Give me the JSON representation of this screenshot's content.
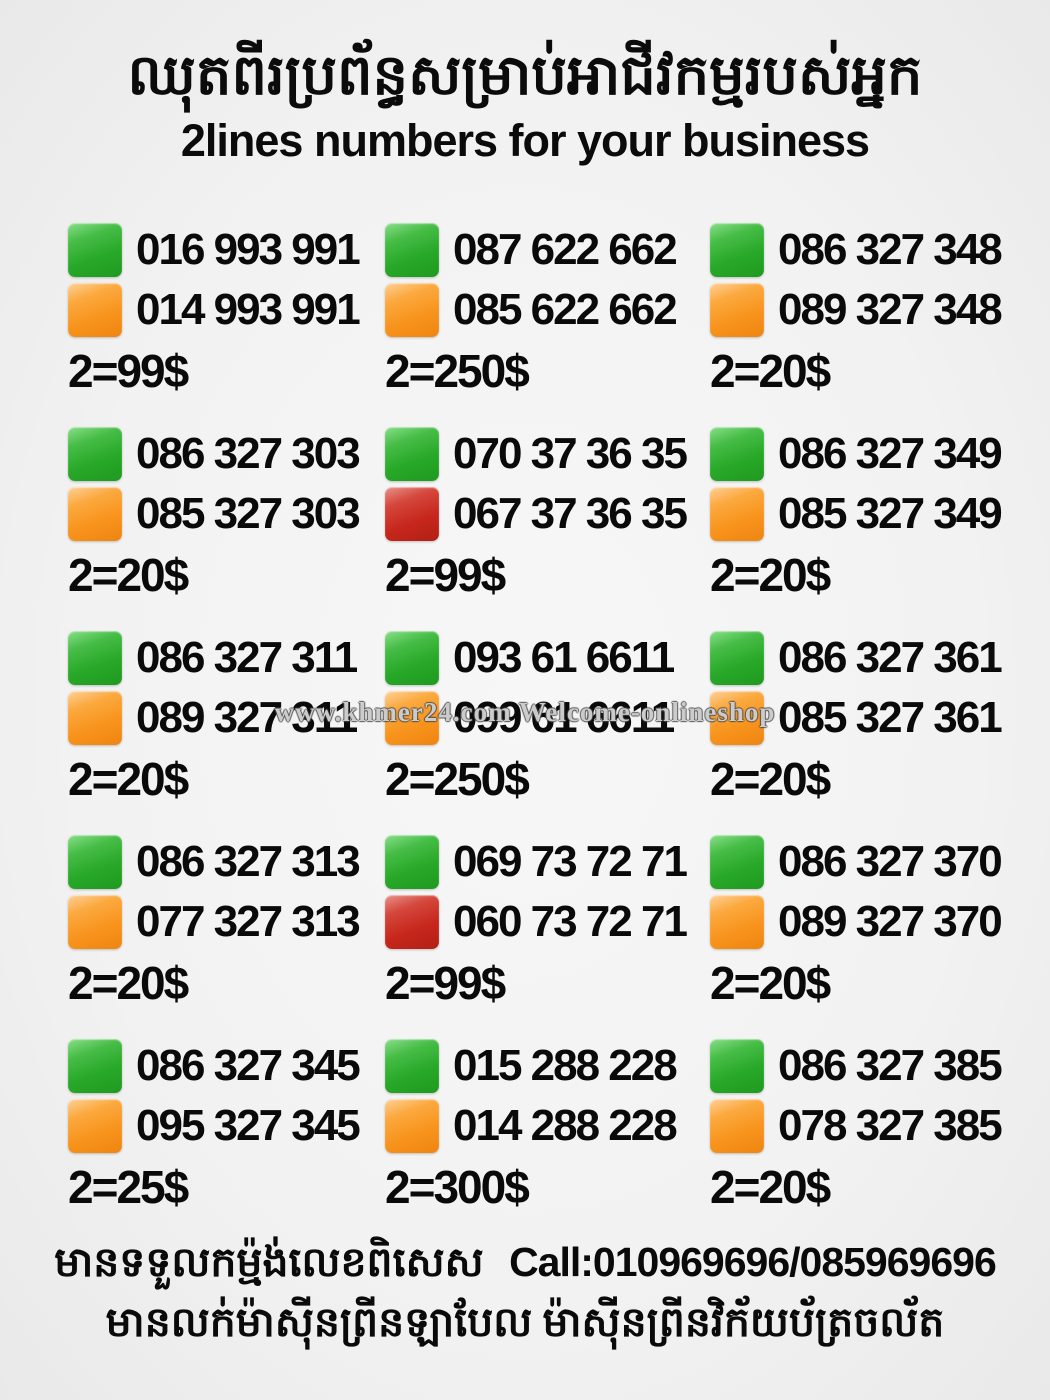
{
  "header": {
    "title_khmer": "ឈុតពីរប្រព័ន្ធសម្រាប់អាជីវកម្មរបស់អ្នក",
    "subtitle": "2lines numbers for your business"
  },
  "grid": {
    "cells": [
      {
        "lines": [
          {
            "color": "green",
            "number": "016 993 991"
          },
          {
            "color": "orange",
            "number": "014 993 991"
          }
        ],
        "price": "2=99$"
      },
      {
        "lines": [
          {
            "color": "green",
            "number": "087 622 662"
          },
          {
            "color": "orange",
            "number": "085 622 662"
          }
        ],
        "price": "2=250$"
      },
      {
        "lines": [
          {
            "color": "green",
            "number": "086 327 348"
          },
          {
            "color": "orange",
            "number": "089 327 348"
          }
        ],
        "price": "2=20$"
      },
      {
        "lines": [
          {
            "color": "green",
            "number": "086 327 303"
          },
          {
            "color": "orange",
            "number": "085 327 303"
          }
        ],
        "price": "2=20$"
      },
      {
        "lines": [
          {
            "color": "green",
            "number": "070 37 36 35"
          },
          {
            "color": "red",
            "number": "067 37 36 35"
          }
        ],
        "price": "2=99$"
      },
      {
        "lines": [
          {
            "color": "green",
            "number": "086 327 349"
          },
          {
            "color": "orange",
            "number": "085 327 349"
          }
        ],
        "price": "2=20$"
      },
      {
        "lines": [
          {
            "color": "green",
            "number": "086 327 311"
          },
          {
            "color": "orange",
            "number": "089 327 311"
          }
        ],
        "price": "2=20$"
      },
      {
        "lines": [
          {
            "color": "green",
            "number": "093 61 6611"
          },
          {
            "color": "orange",
            "number": "099 61 6611"
          }
        ],
        "price": "2=250$"
      },
      {
        "lines": [
          {
            "color": "green",
            "number": "086 327 361"
          },
          {
            "color": "orange",
            "number": "085 327 361"
          }
        ],
        "price": "2=20$"
      },
      {
        "lines": [
          {
            "color": "green",
            "number": "086 327 313"
          },
          {
            "color": "orange",
            "number": "077 327 313"
          }
        ],
        "price": "2=20$"
      },
      {
        "lines": [
          {
            "color": "green",
            "number": "069 73 72 71"
          },
          {
            "color": "red",
            "number": "060 73 72 71"
          }
        ],
        "price": "2=99$"
      },
      {
        "lines": [
          {
            "color": "green",
            "number": "086 327 370"
          },
          {
            "color": "orange",
            "number": "089 327 370"
          }
        ],
        "price": "2=20$"
      },
      {
        "lines": [
          {
            "color": "green",
            "number": "086 327 345"
          },
          {
            "color": "orange",
            "number": "095 327 345"
          }
        ],
        "price": "2=25$"
      },
      {
        "lines": [
          {
            "color": "green",
            "number": "015 288 228"
          },
          {
            "color": "orange",
            "number": "014 288 228"
          }
        ],
        "price": "2=300$"
      },
      {
        "lines": [
          {
            "color": "green",
            "number": "086 327 385"
          },
          {
            "color": "orange",
            "number": "078 327 385"
          }
        ],
        "price": "2=20$"
      }
    ]
  },
  "watermark": "www.khmer24.com Welcome-onlineshop",
  "footer": {
    "line1_khmer": "មានទទួលកម្ម៉ង់លេខពិសេស",
    "line1_call": "Call:010969696/085969696",
    "line2_khmer": "មានលក់ម៉ាស៊ីនព្រីនឡាបែល ម៉ាស៊ីនព្រីនវិក័យប័ត្រចល័ត"
  },
  "colors": {
    "green": "#28a828",
    "orange": "#f8941d",
    "red": "#c7271c",
    "background": "#f2f2f2",
    "text": "#0a0a0a"
  }
}
